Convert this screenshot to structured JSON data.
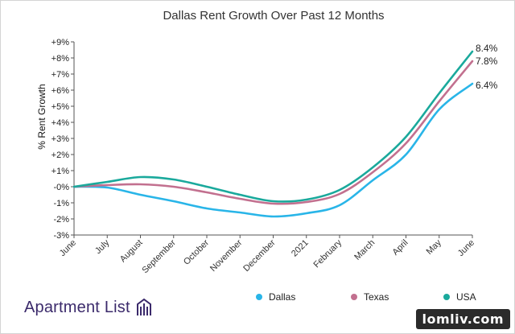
{
  "chart_data": {
    "type": "line",
    "title": "Dallas Rent Growth Over Past 12 Months",
    "xlabel": "",
    "ylabel": "% Rent Growth",
    "categories": [
      "June",
      "July",
      "August",
      "September",
      "October",
      "November",
      "December",
      "2021",
      "February",
      "March",
      "April",
      "May",
      "June"
    ],
    "ylim": [
      -3,
      9
    ],
    "yticks": [
      "-3%",
      "-2%",
      "-1%",
      "-0%",
      "+1%",
      "+2%",
      "+3%",
      "+4%",
      "+5%",
      "+6%",
      "+7%",
      "+8%",
      "+9%"
    ],
    "grid": false,
    "legend_position": "bottom-right",
    "series": [
      {
        "name": "Dallas",
        "color": "#29b5e8",
        "end_label": "6.4%",
        "values": [
          0,
          -0.05,
          -0.5,
          -0.9,
          -1.35,
          -1.6,
          -1.85,
          -1.65,
          -1.15,
          0.4,
          2.0,
          4.8,
          6.4
        ]
      },
      {
        "name": "Texas",
        "color": "#c2708f",
        "end_label": "7.8%",
        "values": [
          0,
          0.1,
          0.15,
          0.0,
          -0.35,
          -0.75,
          -1.05,
          -0.95,
          -0.45,
          0.9,
          2.7,
          5.3,
          7.8
        ]
      },
      {
        "name": "USA",
        "color": "#1aa99c",
        "end_label": "8.4%",
        "values": [
          0,
          0.3,
          0.6,
          0.45,
          0.0,
          -0.5,
          -0.9,
          -0.8,
          -0.2,
          1.2,
          3.1,
          5.8,
          8.4
        ]
      }
    ]
  },
  "brand": {
    "name": "Apartment List"
  },
  "watermark": {
    "text": "lomliv.com"
  }
}
